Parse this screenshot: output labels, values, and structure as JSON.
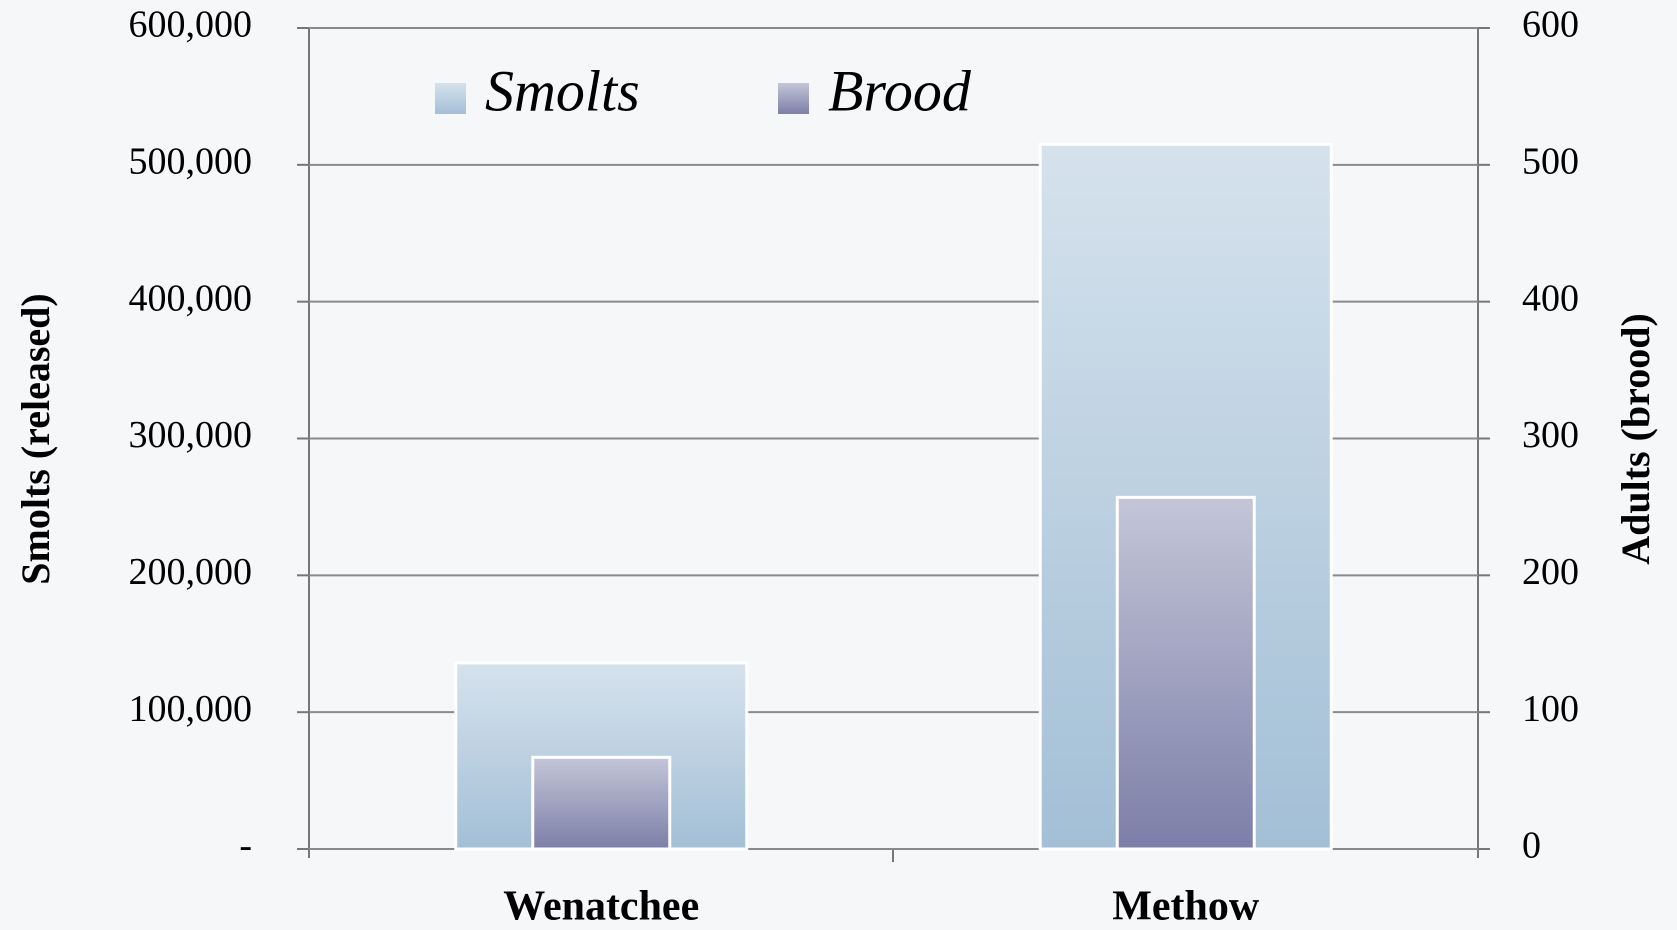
{
  "chart_data": {
    "type": "bar",
    "categories": [
      "Wenatchee",
      "Methow"
    ],
    "series": [
      {
        "name": "Smolts",
        "color": "#a3bfd6",
        "values": [
          136000,
          515000
        ]
      },
      {
        "name": "Brood",
        "color": "#7c7fa8",
        "values": [
          67,
          257
        ],
        "axis": "y2"
      }
    ],
    "ylabel": "Smolts (released)",
    "y2label": "Adults (brood)",
    "ylim": [
      0,
      600000
    ],
    "yticks": [
      {
        "value": 0,
        "label": "-"
      },
      {
        "value": 100000,
        "label": "100,000"
      },
      {
        "value": 200000,
        "label": "200,000"
      },
      {
        "value": 300000,
        "label": "300,000"
      },
      {
        "value": 400000,
        "label": "400,000"
      },
      {
        "value": 500000,
        "label": "500,000"
      },
      {
        "value": 600000,
        "label": "600,000"
      }
    ],
    "y2lim": [
      0,
      600
    ],
    "y2ticks": [
      0,
      100,
      200,
      300,
      400,
      500,
      600
    ],
    "grid": true,
    "legend": "top-left"
  }
}
